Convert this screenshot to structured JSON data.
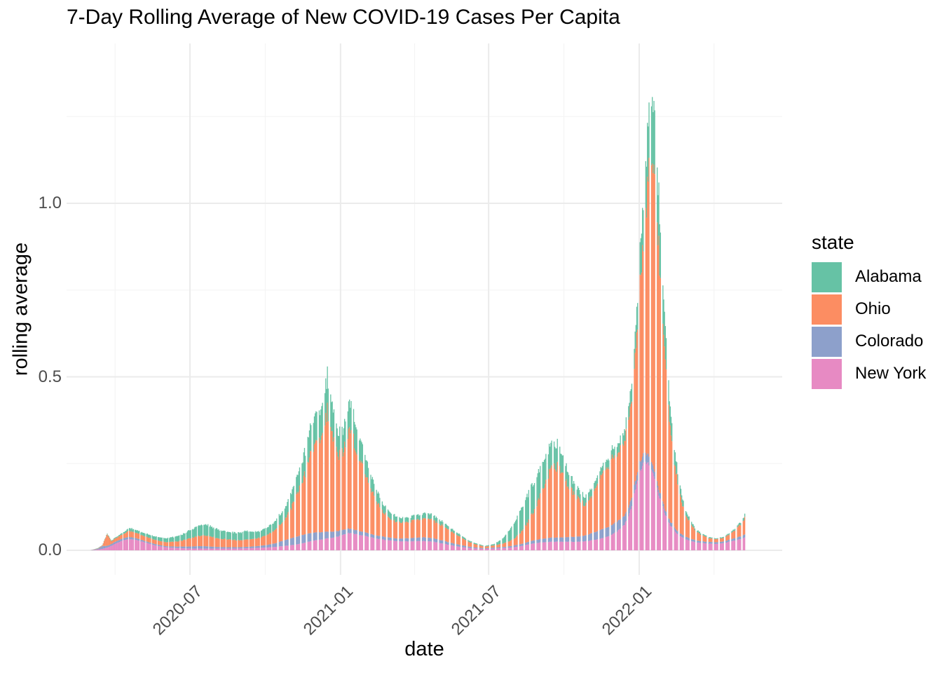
{
  "title": "7-Day Rolling Average of New COVID-19 Cases Per Capita",
  "x_axis": {
    "label": "date",
    "ticks": [
      "2020-07",
      "2021-01",
      "2021-07",
      "2022-01"
    ]
  },
  "y_axis": {
    "label": "rolling average",
    "ticks": [
      "0.0",
      "0.5",
      "1.0"
    ]
  },
  "legend": {
    "title": "state",
    "items": [
      {
        "label": "Alabama",
        "color": "#66C2A5"
      },
      {
        "label": "Ohio",
        "color": "#FC8D62"
      },
      {
        "label": "Colorado",
        "color": "#8DA0CB"
      },
      {
        "label": "New York",
        "color": "#E78AC3"
      }
    ]
  },
  "colors": {
    "background": "#ffffff",
    "grid_major": "#ebebeb",
    "grid_minor": "#f4f4f4",
    "tick_text": "#4d4d4d",
    "title_text": "#000000"
  },
  "chart_data": {
    "type": "bar",
    "stacked": true,
    "bar_unit": "day",
    "title": "7-Day Rolling Average of New COVID-19 Cases Per Capita",
    "xlabel": "date",
    "ylabel": "rolling average",
    "x_ticks": [
      "2020-07",
      "2021-01",
      "2021-07",
      "2022-01"
    ],
    "x_tick_dates": [
      "2020-07-01",
      "2021-01-01",
      "2021-07-01",
      "2022-01-01"
    ],
    "y_ticks": [
      0.0,
      0.5,
      1.0
    ],
    "y_minor_ticks": [
      0.25,
      0.75,
      1.25
    ],
    "ylim": [
      -0.07,
      1.46
    ],
    "x_range": [
      "2020-03-01",
      "2022-05-10"
    ],
    "legend_position": "right",
    "grid": true,
    "stack_order_bottom_to_top": [
      "New York",
      "Colorado",
      "Ohio",
      "Alabama"
    ],
    "series_colors": {
      "Alabama": "#66C2A5",
      "Ohio": "#FC8D62",
      "Colorado": "#8DA0CB",
      "New York": "#E78AC3"
    },
    "notes": "Daily stacked bars; white vertical stripes are days with no reported data. Peaks: winter 2020-12 total ~0.55; 2021-01 secondary ~0.44; Delta 2021-09 ~0.35; Omicron 2022-01 total ~1.39 (Ohio ~0.93, New York ~0.25, Alabama ~0.19).",
    "control_points": {
      "dates": [
        "2020-03-01",
        "2020-03-10",
        "2020-03-16",
        "2020-03-22",
        "2020-03-27",
        "2020-04-03",
        "2020-04-12",
        "2020-04-18",
        "2020-04-26",
        "2020-05-08",
        "2020-05-20",
        "2020-06-01",
        "2020-06-12",
        "2020-06-22",
        "2020-07-02",
        "2020-07-12",
        "2020-07-20",
        "2020-08-01",
        "2020-08-14",
        "2020-08-28",
        "2020-09-08",
        "2020-09-20",
        "2020-10-02",
        "2020-10-14",
        "2020-10-26",
        "2020-11-06",
        "2020-11-16",
        "2020-11-25",
        "2020-12-04",
        "2020-12-11",
        "2020-12-16",
        "2020-12-22",
        "2020-12-29",
        "2021-01-05",
        "2021-01-11",
        "2021-01-18",
        "2021-01-26",
        "2021-02-04",
        "2021-02-13",
        "2021-02-22",
        "2021-03-04",
        "2021-03-15",
        "2021-03-24",
        "2021-04-03",
        "2021-04-14",
        "2021-04-24",
        "2021-05-05",
        "2021-05-16",
        "2021-05-27",
        "2021-06-07",
        "2021-06-17",
        "2021-06-27",
        "2021-07-07",
        "2021-07-16",
        "2021-07-24",
        "2021-08-01",
        "2021-08-09",
        "2021-08-17",
        "2021-08-25",
        "2021-09-02",
        "2021-09-09",
        "2021-09-16",
        "2021-09-24",
        "2021-10-02",
        "2021-10-10",
        "2021-10-18",
        "2021-10-27",
        "2021-11-05",
        "2021-11-13",
        "2021-11-21",
        "2021-11-29",
        "2021-12-07",
        "2021-12-14",
        "2021-12-20",
        "2021-12-26",
        "2022-01-01",
        "2022-01-06",
        "2022-01-11",
        "2022-01-16",
        "2022-01-21",
        "2022-01-27",
        "2022-02-02",
        "2022-02-08",
        "2022-02-15",
        "2022-02-22",
        "2022-03-02",
        "2022-03-10",
        "2022-03-18",
        "2022-03-28",
        "2022-04-06",
        "2022-04-14",
        "2022-04-22",
        "2022-04-29",
        "2022-05-05",
        "2022-05-10"
      ],
      "New York": [
        0,
        0.002,
        0.004,
        0.008,
        0.013,
        0.022,
        0.03,
        0.033,
        0.03,
        0.022,
        0.014,
        0.009,
        0.007,
        0.006,
        0.005,
        0.005,
        0.005,
        0.005,
        0.005,
        0.005,
        0.006,
        0.007,
        0.008,
        0.01,
        0.013,
        0.016,
        0.021,
        0.026,
        0.03,
        0.032,
        0.035,
        0.036,
        0.04,
        0.046,
        0.05,
        0.048,
        0.044,
        0.04,
        0.035,
        0.031,
        0.028,
        0.026,
        0.026,
        0.027,
        0.027,
        0.025,
        0.02,
        0.015,
        0.01,
        0.007,
        0.005,
        0.004,
        0.005,
        0.006,
        0.007,
        0.009,
        0.012,
        0.016,
        0.02,
        0.023,
        0.024,
        0.025,
        0.025,
        0.025,
        0.025,
        0.025,
        0.026,
        0.029,
        0.033,
        0.038,
        0.046,
        0.058,
        0.075,
        0.105,
        0.16,
        0.22,
        0.248,
        0.252,
        0.235,
        0.195,
        0.145,
        0.103,
        0.073,
        0.051,
        0.038,
        0.029,
        0.024,
        0.021,
        0.019,
        0.019,
        0.021,
        0.025,
        0.029,
        0.033,
        0.037
      ],
      "Colorado": [
        0,
        0.002,
        0.008,
        0.005,
        0.005,
        0.006,
        0.006,
        0.006,
        0.005,
        0.004,
        0.004,
        0.003,
        0.004,
        0.005,
        0.006,
        0.007,
        0.007,
        0.005,
        0.004,
        0.004,
        0.004,
        0.005,
        0.007,
        0.011,
        0.017,
        0.022,
        0.024,
        0.024,
        0.022,
        0.021,
        0.02,
        0.018,
        0.016,
        0.014,
        0.013,
        0.012,
        0.011,
        0.01,
        0.009,
        0.009,
        0.008,
        0.008,
        0.009,
        0.01,
        0.011,
        0.01,
        0.009,
        0.007,
        0.006,
        0.004,
        0.003,
        0.002,
        0.003,
        0.003,
        0.004,
        0.005,
        0.006,
        0.007,
        0.009,
        0.01,
        0.011,
        0.012,
        0.012,
        0.013,
        0.014,
        0.015,
        0.017,
        0.021,
        0.025,
        0.027,
        0.028,
        0.028,
        0.026,
        0.025,
        0.025,
        0.026,
        0.027,
        0.026,
        0.023,
        0.02,
        0.016,
        0.013,
        0.011,
        0.009,
        0.008,
        0.007,
        0.006,
        0.005,
        0.005,
        0.005,
        0.005,
        0.006,
        0.007,
        0.008,
        0.009
      ],
      "Ohio": [
        0,
        0.001,
        0.002,
        0.034,
        0.008,
        0.01,
        0.013,
        0.018,
        0.016,
        0.014,
        0.012,
        0.012,
        0.014,
        0.018,
        0.024,
        0.03,
        0.032,
        0.027,
        0.023,
        0.021,
        0.021,
        0.023,
        0.027,
        0.04,
        0.065,
        0.105,
        0.16,
        0.225,
        0.27,
        0.305,
        0.36,
        0.285,
        0.225,
        0.235,
        0.29,
        0.255,
        0.2,
        0.15,
        0.105,
        0.072,
        0.054,
        0.046,
        0.047,
        0.052,
        0.057,
        0.053,
        0.045,
        0.034,
        0.024,
        0.014,
        0.008,
        0.005,
        0.006,
        0.009,
        0.013,
        0.02,
        0.033,
        0.055,
        0.085,
        0.125,
        0.16,
        0.225,
        0.205,
        0.175,
        0.14,
        0.115,
        0.088,
        0.115,
        0.145,
        0.175,
        0.195,
        0.205,
        0.22,
        0.255,
        0.33,
        0.48,
        0.64,
        0.79,
        0.9,
        0.83,
        0.64,
        0.43,
        0.28,
        0.165,
        0.095,
        0.052,
        0.03,
        0.018,
        0.011,
        0.009,
        0.011,
        0.016,
        0.024,
        0.035,
        0.048
      ],
      "Alabama": [
        0,
        0.001,
        0.001,
        0.002,
        0.002,
        0.003,
        0.005,
        0.008,
        0.008,
        0.009,
        0.01,
        0.011,
        0.014,
        0.018,
        0.024,
        0.03,
        0.032,
        0.028,
        0.023,
        0.022,
        0.025,
        0.019,
        0.021,
        0.026,
        0.035,
        0.048,
        0.063,
        0.078,
        0.085,
        0.092,
        0.105,
        0.085,
        0.065,
        0.068,
        0.083,
        0.075,
        0.061,
        0.047,
        0.034,
        0.024,
        0.018,
        0.014,
        0.013,
        0.014,
        0.016,
        0.015,
        0.012,
        0.009,
        0.006,
        0.004,
        0.003,
        0.002,
        0.004,
        0.012,
        0.026,
        0.046,
        0.068,
        0.08,
        0.083,
        0.08,
        0.075,
        0.072,
        0.062,
        0.047,
        0.034,
        0.027,
        0.024,
        0.023,
        0.023,
        0.024,
        0.026,
        0.028,
        0.032,
        0.04,
        0.06,
        0.09,
        0.125,
        0.16,
        0.188,
        0.175,
        0.135,
        0.092,
        0.06,
        0.037,
        0.021,
        0.011,
        0.006,
        0.004,
        0.003,
        0.002,
        0.003,
        0.004,
        0.005,
        0.007,
        0.009
      ]
    }
  }
}
